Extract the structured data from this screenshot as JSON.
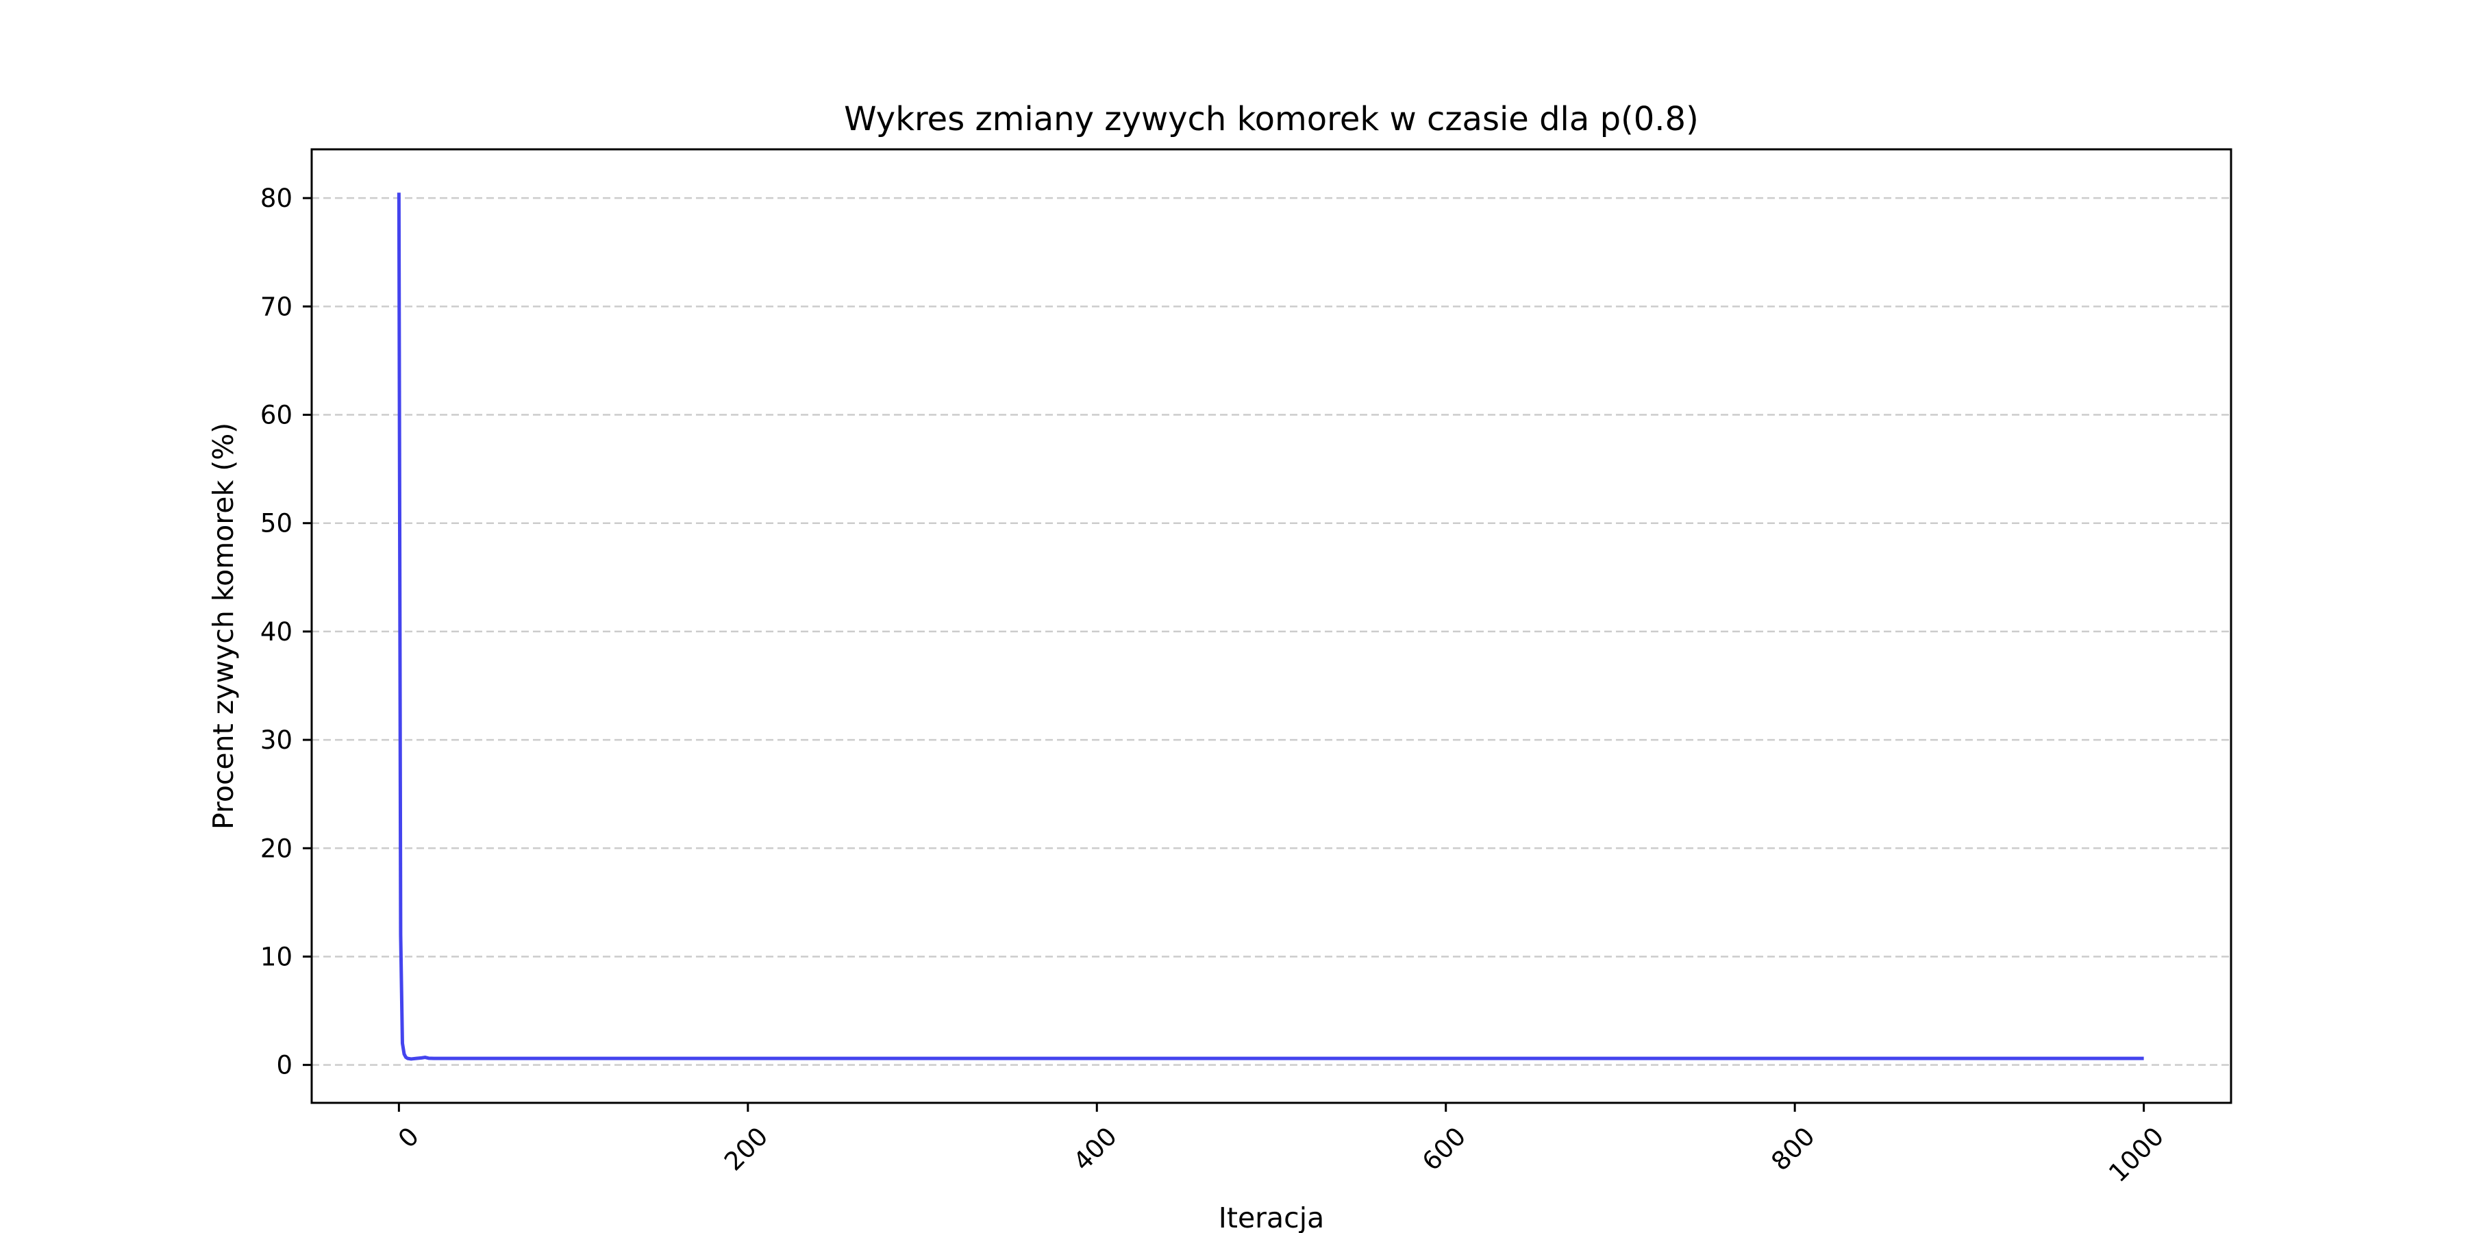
{
  "chart_data": {
    "type": "line",
    "title": "Wykres zmiany zywych komorek w czasie dla p(0.8)",
    "xlabel": "Iteracja",
    "ylabel": "Procent zywych komorek (%)",
    "xlim": [
      -50,
      1050
    ],
    "ylim": [
      -3.5,
      84.5
    ],
    "xticks": [
      0,
      200,
      400,
      600,
      800,
      1000
    ],
    "yticks": [
      0,
      10,
      20,
      30,
      40,
      50,
      60,
      70,
      80
    ],
    "grid": {
      "y": true,
      "x": false,
      "style": "dashed"
    },
    "series": [
      {
        "color": "#4444ee",
        "x": [
          0,
          1,
          2,
          3,
          4,
          5,
          7,
          10,
          13,
          15,
          17,
          20,
          50,
          100,
          200,
          300,
          400,
          500,
          600,
          700,
          800,
          900,
          1000
        ],
        "y": [
          80.5,
          12.0,
          2.0,
          1.0,
          0.7,
          0.6,
          0.55,
          0.6,
          0.65,
          0.7,
          0.62,
          0.6,
          0.6,
          0.6,
          0.6,
          0.6,
          0.6,
          0.6,
          0.6,
          0.6,
          0.6,
          0.6,
          0.6
        ]
      }
    ]
  }
}
